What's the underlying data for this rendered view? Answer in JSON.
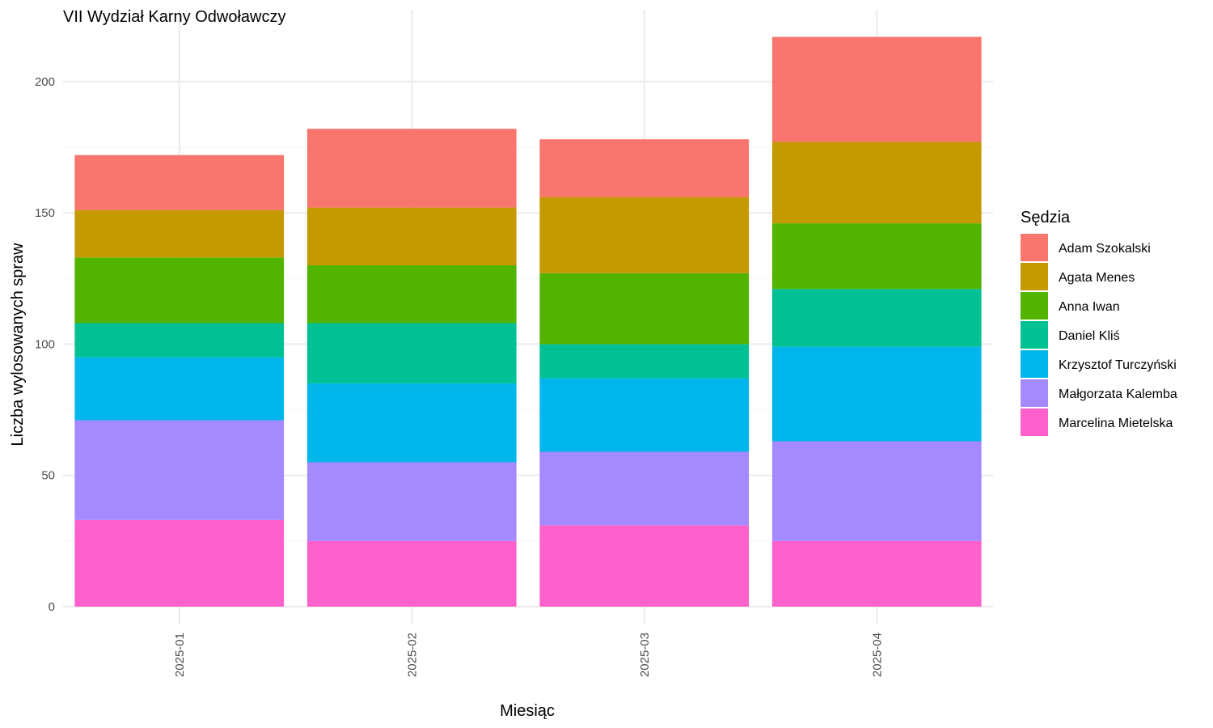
{
  "chart_data": {
    "type": "bar",
    "stacked": true,
    "title": "VII Wydział Karny Odwoławczy",
    "xlabel": "Miesiąc",
    "ylabel": "Liczba wylosowanych spraw",
    "ylim": [
      0,
      220
    ],
    "yticks": [
      0,
      50,
      100,
      150,
      200
    ],
    "grid": true,
    "legend_title": "Sędzia",
    "legend_position": "right",
    "categories": [
      "2025-01",
      "2025-02",
      "2025-03",
      "2025-04"
    ],
    "series": [
      {
        "name": "Marcelina Mietelska",
        "color": "#FF61CC",
        "values": [
          33,
          25,
          31,
          25
        ]
      },
      {
        "name": "Małgorzata Kalemba",
        "color": "#A58AFF",
        "values": [
          38,
          30,
          28,
          38
        ]
      },
      {
        "name": "Krzysztof Turczyński",
        "color": "#00B6EB",
        "values": [
          24,
          30,
          28,
          36
        ]
      },
      {
        "name": "Daniel Kliś",
        "color": "#00C094",
        "values": [
          13,
          23,
          13,
          22
        ]
      },
      {
        "name": "Anna Iwan",
        "color": "#53B400",
        "values": [
          25,
          22,
          27,
          25
        ]
      },
      {
        "name": "Agata Menes",
        "color": "#C49A00",
        "values": [
          18,
          22,
          29,
          31
        ]
      },
      {
        "name": "Adam Szokalski",
        "color": "#F8766D",
        "values": [
          21,
          30,
          22,
          40
        ]
      }
    ]
  }
}
